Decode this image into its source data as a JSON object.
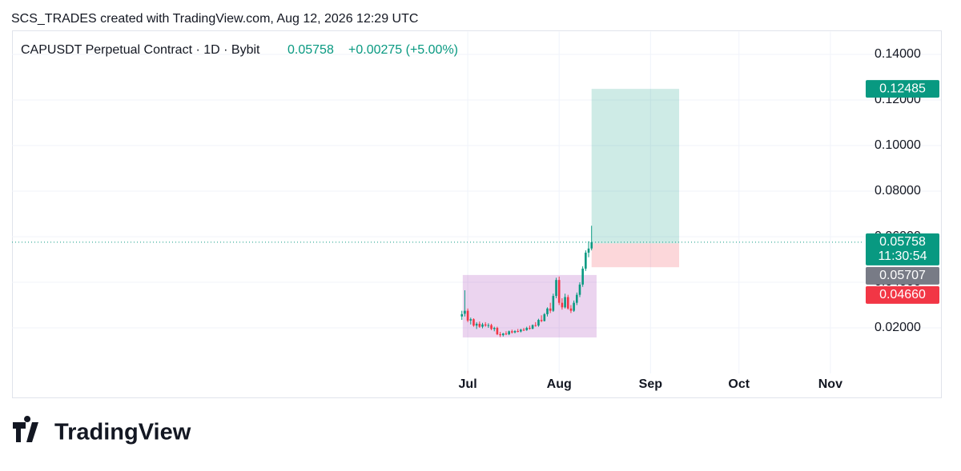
{
  "header": {
    "credit": "SCS_TRADES created with TradingView.com, Aug 12, 2026 12:29 UTC"
  },
  "chart_data": {
    "type": "candlestick",
    "title": "CAPUSDT Perpetual Contract · 1D · Bybit",
    "last_price": "0.05758",
    "change": "+0.00275 (+5.00%)",
    "x": [
      -2,
      -1,
      0,
      1,
      2,
      3,
      4,
      5,
      6,
      7,
      8,
      9,
      10,
      11,
      12,
      13,
      14,
      15,
      16,
      17,
      18,
      19,
      20,
      21,
      22,
      23,
      24,
      25,
      26,
      27,
      28,
      29,
      30,
      31,
      32,
      33,
      34,
      35,
      36,
      37,
      38,
      39,
      40,
      41,
      42
    ],
    "open": [
      0.025,
      0.0262,
      0.0275,
      0.0232,
      0.0238,
      0.021,
      0.0218,
      0.0205,
      0.0215,
      0.021,
      0.0212,
      0.0195,
      0.02,
      0.0172,
      0.0168,
      0.0175,
      0.0172,
      0.0185,
      0.018,
      0.0186,
      0.0184,
      0.0192,
      0.019,
      0.02,
      0.0196,
      0.0212,
      0.021,
      0.0235,
      0.023,
      0.026,
      0.0285,
      0.0275,
      0.034,
      0.041,
      0.031,
      0.029,
      0.0335,
      0.0285,
      0.0275,
      0.031,
      0.0345,
      0.039,
      0.046,
      0.053,
      0.05483
    ],
    "high": [
      0.0275,
      0.0365,
      0.0285,
      0.0245,
      0.0242,
      0.0225,
      0.0228,
      0.0222,
      0.0225,
      0.022,
      0.0218,
      0.0205,
      0.0205,
      0.0182,
      0.0178,
      0.0185,
      0.0188,
      0.0192,
      0.019,
      0.0195,
      0.0196,
      0.02,
      0.0205,
      0.021,
      0.0215,
      0.0225,
      0.024,
      0.0255,
      0.0265,
      0.029,
      0.031,
      0.035,
      0.042,
      0.0425,
      0.033,
      0.035,
      0.0345,
      0.03,
      0.032,
      0.0355,
      0.04,
      0.047,
      0.054,
      0.058,
      0.0648
    ],
    "low": [
      0.0235,
      0.025,
      0.0225,
      0.0215,
      0.0205,
      0.0195,
      0.02,
      0.0198,
      0.0205,
      0.02,
      0.019,
      0.0185,
      0.0168,
      0.016,
      0.0162,
      0.0168,
      0.0168,
      0.0175,
      0.0176,
      0.018,
      0.018,
      0.0186,
      0.0187,
      0.0192,
      0.0194,
      0.0205,
      0.0205,
      0.0225,
      0.0228,
      0.025,
      0.0265,
      0.027,
      0.033,
      0.03,
      0.028,
      0.0285,
      0.028,
      0.0265,
      0.027,
      0.03,
      0.0335,
      0.038,
      0.045,
      0.051,
      0.054
    ],
    "close": [
      0.026,
      0.0275,
      0.0232,
      0.0238,
      0.021,
      0.0218,
      0.0205,
      0.0215,
      0.021,
      0.0212,
      0.0195,
      0.02,
      0.0172,
      0.0168,
      0.0175,
      0.0172,
      0.0185,
      0.018,
      0.0186,
      0.0184,
      0.0192,
      0.019,
      0.02,
      0.0196,
      0.0212,
      0.021,
      0.0235,
      0.023,
      0.026,
      0.0285,
      0.0275,
      0.034,
      0.041,
      0.031,
      0.029,
      0.0335,
      0.0285,
      0.0275,
      0.031,
      0.0345,
      0.039,
      0.046,
      0.053,
      0.0548,
      0.05758
    ],
    "up_color": "#089981",
    "down_color": "#f23645",
    "xlim": [
      -154.6,
      132
    ],
    "xticks": [
      {
        "value": 0,
        "label": "Jul"
      },
      {
        "value": 31,
        "label": "Aug"
      },
      {
        "value": 62,
        "label": "Sep"
      },
      {
        "value": 92,
        "label": "Oct"
      },
      {
        "value": 123,
        "label": "Nov"
      }
    ],
    "ylim": [
      0,
      0.15
    ],
    "yticks": [
      {
        "value": 0.02,
        "label": "0.02000"
      },
      {
        "value": 0.04,
        "label": "0.04000"
      },
      {
        "value": 0.06,
        "label": "0.06000"
      },
      {
        "value": 0.08,
        "label": "0.08000"
      },
      {
        "value": 0.1,
        "label": "0.10000"
      },
      {
        "value": 0.12,
        "label": "0.12000"
      },
      {
        "value": 0.14,
        "label": "0.14000"
      }
    ],
    "grid": true,
    "range_box": {
      "x": [
        -1.7,
        43.7
      ],
      "y": [
        0.0158,
        0.0432
      ],
      "color": "rgba(156,39,176,0.2)"
    },
    "position": {
      "x": [
        42,
        71.7
      ],
      "entry": 0.05707,
      "target": 0.12485,
      "stop": 0.0466,
      "profit_color": "rgba(8,153,129,0.2)",
      "loss_color": "rgba(242,54,69,0.2)"
    },
    "current_price": 0.05758,
    "price_labels": [
      {
        "value": 0.12485,
        "label": "0.12485",
        "color": "#089981"
      },
      {
        "value": 0.05758,
        "label": "0.05758",
        "sub": "11:30:54",
        "color": "#089981"
      },
      {
        "value": 0.05707,
        "label": "0.05707",
        "color": "#787b86"
      },
      {
        "value": 0.0466,
        "label": "0.04660",
        "color": "#f23645"
      }
    ]
  },
  "footer": {
    "brand": "TradingView"
  }
}
